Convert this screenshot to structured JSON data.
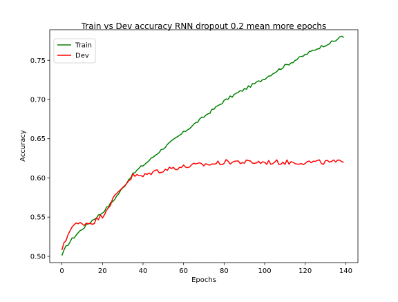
{
  "chart_data": {
    "type": "line",
    "title": "Train vs Dev accuracy RNN dropout 0.2 mean more epochs",
    "xlabel": "Epochs",
    "ylabel": "Accuracy",
    "xlim": [
      -6,
      146
    ],
    "ylim": [
      0.492,
      0.789
    ],
    "xticks": [
      0,
      20,
      40,
      60,
      80,
      100,
      120,
      140
    ],
    "yticks": [
      0.5,
      0.55,
      0.6,
      0.65,
      0.7,
      0.75
    ],
    "xtick_labels": [
      "0",
      "20",
      "40",
      "60",
      "80",
      "100",
      "120",
      "140"
    ],
    "ytick_labels": [
      "0.50",
      "0.55",
      "0.60",
      "0.65",
      "0.70",
      "0.75"
    ],
    "grid": false,
    "legend_position": "top-left",
    "series": [
      {
        "name": "Train",
        "color": "#008000",
        "anchors": [
          [
            0,
            0.501
          ],
          [
            2,
            0.512
          ],
          [
            5,
            0.522
          ],
          [
            8,
            0.53
          ],
          [
            10,
            0.535
          ],
          [
            15,
            0.546
          ],
          [
            20,
            0.556
          ],
          [
            25,
            0.57
          ],
          [
            30,
            0.587
          ],
          [
            34,
            0.602
          ],
          [
            38,
            0.612
          ],
          [
            42,
            0.62
          ],
          [
            46,
            0.629
          ],
          [
            50,
            0.638
          ],
          [
            55,
            0.648
          ],
          [
            60,
            0.658
          ],
          [
            65,
            0.668
          ],
          [
            70,
            0.678
          ],
          [
            75,
            0.688
          ],
          [
            80,
            0.698
          ],
          [
            85,
            0.706
          ],
          [
            90,
            0.713
          ],
          [
            95,
            0.72
          ],
          [
            100,
            0.727
          ],
          [
            105,
            0.735
          ],
          [
            110,
            0.743
          ],
          [
            115,
            0.75
          ],
          [
            120,
            0.757
          ],
          [
            125,
            0.764
          ],
          [
            130,
            0.77
          ],
          [
            135,
            0.775
          ],
          [
            137,
            0.78
          ],
          [
            139,
            0.779
          ]
        ]
      },
      {
        "name": "Dev",
        "color": "#ff0000",
        "anchors": [
          [
            0,
            0.508
          ],
          [
            2,
            0.521
          ],
          [
            4,
            0.535
          ],
          [
            6,
            0.54
          ],
          [
            10,
            0.542
          ],
          [
            15,
            0.543
          ],
          [
            20,
            0.552
          ],
          [
            25,
            0.572
          ],
          [
            30,
            0.589
          ],
          [
            33,
            0.597
          ],
          [
            35,
            0.603
          ],
          [
            40,
            0.602
          ],
          [
            45,
            0.608
          ],
          [
            50,
            0.61
          ],
          [
            55,
            0.613
          ],
          [
            60,
            0.614
          ],
          [
            65,
            0.616
          ],
          [
            70,
            0.617
          ],
          [
            75,
            0.618
          ],
          [
            80,
            0.62
          ],
          [
            85,
            0.621
          ],
          [
            90,
            0.62
          ],
          [
            100,
            0.62
          ],
          [
            110,
            0.62
          ],
          [
            120,
            0.62
          ],
          [
            130,
            0.62
          ],
          [
            139,
            0.62
          ]
        ]
      }
    ]
  }
}
